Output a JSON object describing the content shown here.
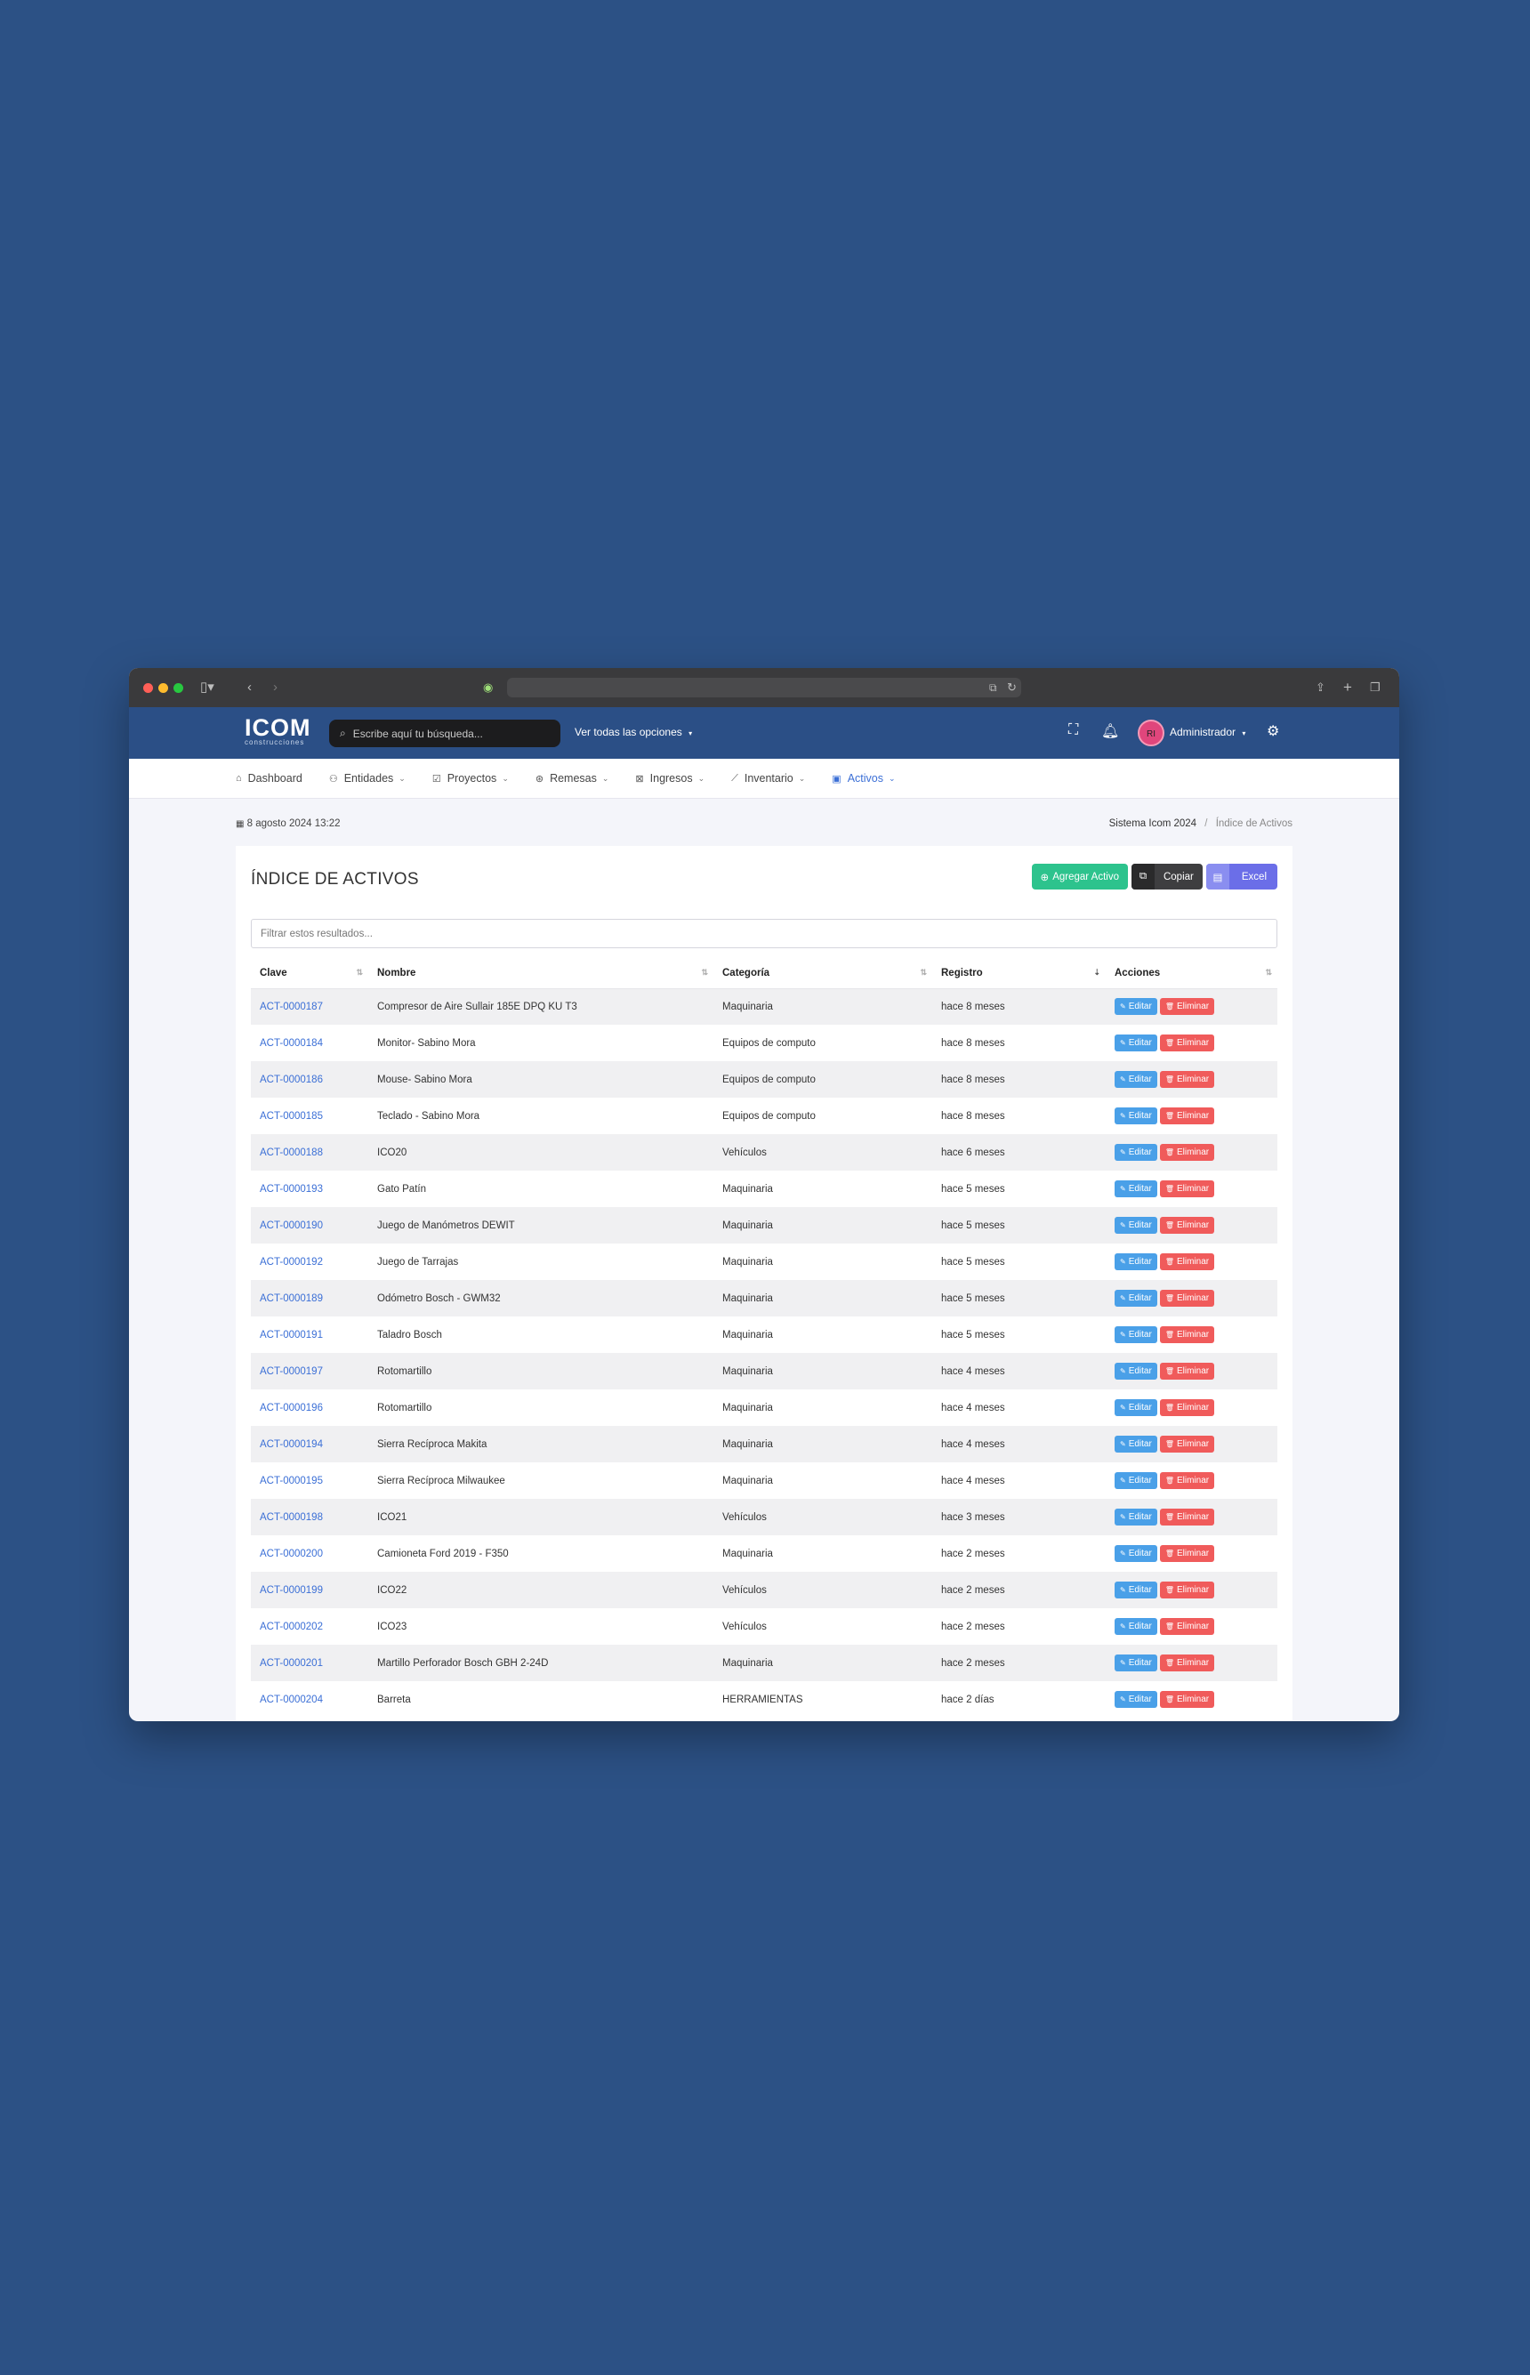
{
  "app": {
    "logo": "ICOM",
    "logo_sub": "construcciones",
    "search_placeholder": "Escribe aquí tu búsqueda...",
    "ver_todas": "Ver todas las opciones",
    "user_initials": "RI",
    "user_name": "Administrador"
  },
  "nav": {
    "items": [
      {
        "label": "Dashboard",
        "icon": "home-icon"
      },
      {
        "label": "Entidades",
        "icon": "users-icon"
      },
      {
        "label": "Proyectos",
        "icon": "clipboard-icon"
      },
      {
        "label": "Remesas",
        "icon": "dollar-icon"
      },
      {
        "label": "Ingresos",
        "icon": "inbox-icon"
      },
      {
        "label": "Inventario",
        "icon": "chart-icon"
      },
      {
        "label": "Activos",
        "icon": "box-icon"
      }
    ]
  },
  "subheader": {
    "date": "8 agosto 2024 13:22",
    "breadcrumb_root": "Sistema Icom 2024",
    "breadcrumb_current": "Índice de Activos"
  },
  "page": {
    "title": "ÍNDICE DE ACTIVOS",
    "btn_add": "Agregar Activo",
    "btn_copy": "Copiar",
    "btn_excel": "Excel",
    "filter_placeholder": "Filtrar estos resultados..."
  },
  "table": {
    "headers": [
      "Clave",
      "Nombre",
      "Categoría",
      "Registro",
      "Acciones"
    ],
    "edit_label": "Editar",
    "delete_label": "Eliminar",
    "rows": [
      {
        "clave": "ACT-0000187",
        "nombre": "Compresor de Aire Sullair 185E DPQ KU T3",
        "categoria": "Maquinaria",
        "registro": "hace 8 meses"
      },
      {
        "clave": "ACT-0000184",
        "nombre": "Monitor- Sabino Mora",
        "categoria": "Equipos de computo",
        "registro": "hace 8 meses"
      },
      {
        "clave": "ACT-0000186",
        "nombre": "Mouse- Sabino Mora",
        "categoria": "Equipos de computo",
        "registro": "hace 8 meses"
      },
      {
        "clave": "ACT-0000185",
        "nombre": "Teclado - Sabino Mora",
        "categoria": "Equipos de computo",
        "registro": "hace 8 meses"
      },
      {
        "clave": "ACT-0000188",
        "nombre": "ICO20",
        "categoria": "Vehículos",
        "registro": "hace 6 meses"
      },
      {
        "clave": "ACT-0000193",
        "nombre": "Gato Patín",
        "categoria": "Maquinaria",
        "registro": "hace 5 meses"
      },
      {
        "clave": "ACT-0000190",
        "nombre": "Juego de Manómetros DEWIT",
        "categoria": "Maquinaria",
        "registro": "hace 5 meses"
      },
      {
        "clave": "ACT-0000192",
        "nombre": "Juego de Tarrajas",
        "categoria": "Maquinaria",
        "registro": "hace 5 meses"
      },
      {
        "clave": "ACT-0000189",
        "nombre": "Odómetro Bosch - GWM32",
        "categoria": "Maquinaria",
        "registro": "hace 5 meses"
      },
      {
        "clave": "ACT-0000191",
        "nombre": "Taladro Bosch",
        "categoria": "Maquinaria",
        "registro": "hace 5 meses"
      },
      {
        "clave": "ACT-0000197",
        "nombre": "Rotomartillo",
        "categoria": "Maquinaria",
        "registro": "hace 4 meses"
      },
      {
        "clave": "ACT-0000196",
        "nombre": "Rotomartillo",
        "categoria": "Maquinaria",
        "registro": "hace 4 meses"
      },
      {
        "clave": "ACT-0000194",
        "nombre": "Sierra Recíproca Makita",
        "categoria": "Maquinaria",
        "registro": "hace 4 meses"
      },
      {
        "clave": "ACT-0000195",
        "nombre": "Sierra Recíproca Milwaukee",
        "categoria": "Maquinaria",
        "registro": "hace 4 meses"
      },
      {
        "clave": "ACT-0000198",
        "nombre": "ICO21",
        "categoria": "Vehículos",
        "registro": "hace 3 meses"
      },
      {
        "clave": "ACT-0000200",
        "nombre": "Camioneta Ford 2019 - F350",
        "categoria": "Maquinaria",
        "registro": "hace 2 meses"
      },
      {
        "clave": "ACT-0000199",
        "nombre": "ICO22",
        "categoria": "Vehículos",
        "registro": "hace 2 meses"
      },
      {
        "clave": "ACT-0000202",
        "nombre": "ICO23",
        "categoria": "Vehículos",
        "registro": "hace 2 meses"
      },
      {
        "clave": "ACT-0000201",
        "nombre": "Martillo Perforador Bosch GBH 2-24D",
        "categoria": "Maquinaria",
        "registro": "hace 2 meses"
      },
      {
        "clave": "ACT-0000204",
        "nombre": "Barreta",
        "categoria": "HERRAMIENTAS",
        "registro": "hace 2 días"
      }
    ]
  },
  "colors": {
    "background": "#2c5185",
    "topbar": "#2b4f86",
    "accent_link": "#3b6fd6",
    "btn_add": "#2dc38d",
    "btn_edit": "#4aa0e8",
    "btn_delete": "#f05b5b",
    "btn_excel": "#6b6ee8"
  }
}
